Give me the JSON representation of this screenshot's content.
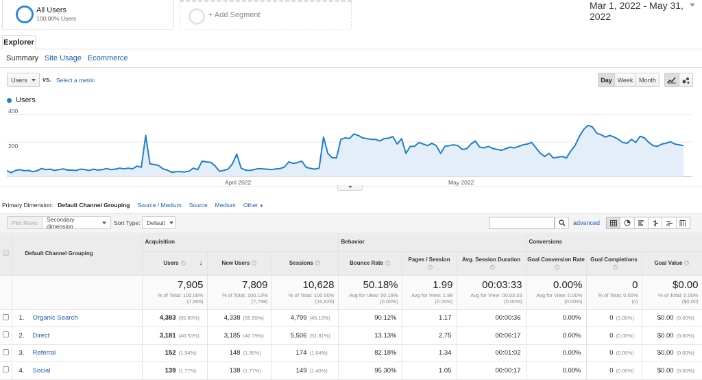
{
  "segments": {
    "all_users_title": "All Users",
    "all_users_sub": "100.00% Users",
    "add_segment": "+ Add Segment"
  },
  "date_range": "Mar 1, 2022 - May 31, 2022",
  "tabs": {
    "explorer": "Explorer"
  },
  "subtabs": [
    "Summary",
    "Site Usage",
    "Ecommerce"
  ],
  "metric": {
    "selected": "Users",
    "vs": "vs.",
    "select_metric": "Select a metric"
  },
  "granularity": [
    "Day",
    "Week",
    "Month"
  ],
  "chart_data": {
    "type": "line",
    "series_name": "Users",
    "series_color": "#1e7ec8",
    "yticks": [
      "400",
      "200"
    ],
    "xticks": [
      "April 2022",
      "May 2022"
    ],
    "ylim": [
      0,
      450
    ],
    "x_start": "2022-03-01",
    "x_end": "2022-05-31",
    "values": [
      38,
      25,
      40,
      45,
      38,
      40,
      32,
      38,
      52,
      45,
      48,
      40,
      45,
      50,
      42,
      42,
      40,
      48,
      45,
      40,
      48,
      42,
      45,
      52,
      45,
      48,
      55,
      50,
      55,
      50,
      68,
      60,
      265,
      82,
      78,
      72,
      50,
      42,
      28,
      32,
      32,
      30,
      35,
      55,
      45,
      100,
      95,
      92,
      70,
      35,
      40,
      48,
      82,
      145,
      55,
      42,
      40,
      45,
      52,
      50,
      48,
      45,
      50,
      52,
      62,
      95,
      85,
      90,
      100,
      60,
      53,
      48,
      55,
      255,
      150,
      122,
      120,
      240,
      250,
      245,
      275,
      265,
      250,
      245,
      240,
      240,
      230,
      245,
      248,
      258,
      210,
      245,
      150,
      195,
      195,
      220,
      210,
      200,
      215,
      200,
      150,
      195,
      200,
      205,
      200,
      175,
      180,
      210,
      230,
      190,
      185,
      195,
      182,
      175,
      170,
      180,
      190,
      185,
      195,
      205,
      210,
      220,
      185,
      150,
      130,
      150,
      120,
      125,
      130,
      120,
      165,
      200,
      260,
      305,
      330,
      320,
      280,
      270,
      255,
      265,
      255,
      240,
      220,
      215,
      240,
      220,
      260,
      250,
      220,
      200,
      195,
      210,
      215,
      225,
      210,
      205,
      200
    ]
  },
  "primary_dimension": {
    "label": "Primary Dimension:",
    "current": "Default Channel Grouping",
    "options": [
      "Source / Medium",
      "Source",
      "Medium",
      "Other"
    ]
  },
  "toolbar": {
    "plot_rows": "Plot Rows",
    "secondary_dimension": "Secondary dimension",
    "sort_type_label": "Sort Type:",
    "sort_type_value": "Default",
    "advanced": "advanced"
  },
  "table": {
    "dimension_header": "Default Channel Grouping",
    "groups": [
      "Acquisition",
      "Behavior",
      "Conversions"
    ],
    "columns": [
      "Users",
      "New Users",
      "Sessions",
      "Bounce Rate",
      "Pages / Session",
      "Avg. Session Duration",
      "Goal Conversion Rate",
      "Goal Completions",
      "Goal Value"
    ],
    "totals": [
      {
        "value": "7,905",
        "sub1": "% of Total: 100.00%",
        "sub2": "(7,905)"
      },
      {
        "value": "7,809",
        "sub1": "% of Total: 100.13%",
        "sub2": "(7,799)"
      },
      {
        "value": "10,628",
        "sub1": "% of Total: 100.00%",
        "sub2": "(10,628)"
      },
      {
        "value": "50.18%",
        "sub1": "Avg for View: 50.18%",
        "sub2": "(0.00%)"
      },
      {
        "value": "1.99",
        "sub1": "Avg for View: 1.99",
        "sub2": "(0.00%)"
      },
      {
        "value": "00:03:33",
        "sub1": "Avg for View: 00:03:33",
        "sub2": "(0.00%)"
      },
      {
        "value": "0.00%",
        "sub1": "Avg for View: 0.00%",
        "sub2": "(0.00%)"
      },
      {
        "value": "0",
        "sub1": "% of Total: 0.00%",
        "sub2": "(0)"
      },
      {
        "value": "$0.00",
        "sub1": "% of Total: 0.00%",
        "sub2": "($0.00)"
      }
    ],
    "rows": [
      {
        "idx": "1.",
        "name": "Organic Search",
        "users": "4,383",
        "users_pct": "(55.80%)",
        "new_users": "4,338",
        "new_users_pct": "(55.55%)",
        "sessions": "4,799",
        "sessions_pct": "(45.15%)",
        "bounce": "90.12%",
        "pps": "1.17",
        "dur": "00:00:36",
        "gcr": "0.00%",
        "gc": "0",
        "gc_pct": "(0.00%)",
        "gv": "$0.00",
        "gv_pct": "(0.00%)"
      },
      {
        "idx": "2.",
        "name": "Direct",
        "users": "3,181",
        "users_pct": "(40.50%)",
        "new_users": "3,185",
        "new_users_pct": "(40.79%)",
        "sessions": "5,506",
        "sessions_pct": "(51.81%)",
        "bounce": "13.13%",
        "pps": "2.75",
        "dur": "00:06:17",
        "gcr": "0.00%",
        "gc": "0",
        "gc_pct": "(0.00%)",
        "gv": "$0.00",
        "gv_pct": "(0.00%)"
      },
      {
        "idx": "3.",
        "name": "Referral",
        "users": "152",
        "users_pct": "(1.94%)",
        "new_users": "148",
        "new_users_pct": "(1.90%)",
        "sessions": "174",
        "sessions_pct": "(1.64%)",
        "bounce": "82.18%",
        "pps": "1.34",
        "dur": "00:01:02",
        "gcr": "0.00%",
        "gc": "0",
        "gc_pct": "(0.00%)",
        "gv": "$0.00",
        "gv_pct": "(0.00%)"
      },
      {
        "idx": "4.",
        "name": "Social",
        "users": "139",
        "users_pct": "(1.77%)",
        "new_users": "138",
        "new_users_pct": "(1.77%)",
        "sessions": "149",
        "sessions_pct": "(1.40%)",
        "bounce": "95.30%",
        "pps": "1.05",
        "dur": "00:00:17",
        "gcr": "0.00%",
        "gc": "0",
        "gc_pct": "(0.00%)",
        "gv": "$0.00",
        "gv_pct": "(0.00%)"
      }
    ]
  }
}
